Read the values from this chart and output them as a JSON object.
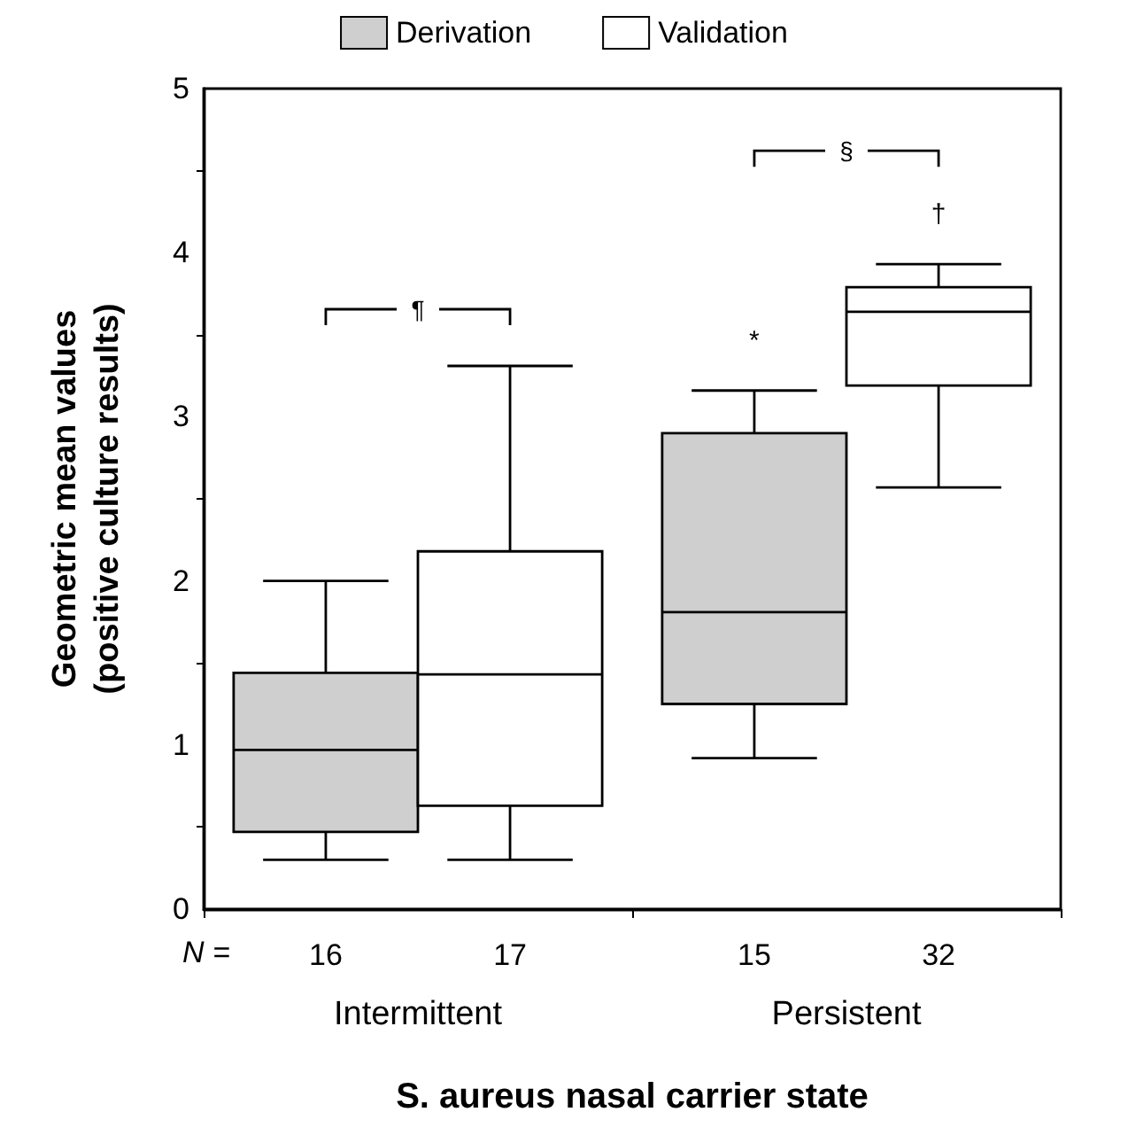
{
  "chart_data": {
    "type": "box",
    "categories": [
      "Intermittent",
      "Persistent"
    ],
    "xlabel": "S. aureus nasal carrier state",
    "ylabel": "Geometric mean values\n(positive culture results)",
    "ylim": [
      0,
      5
    ],
    "yticks": [
      0,
      1,
      2,
      3,
      4,
      5
    ],
    "grid": false,
    "legend": "top",
    "series": [
      {
        "name": "Derivation",
        "color": "#cfcfcf",
        "boxes": [
          {
            "low": 0.3,
            "q1": 0.47,
            "median": 0.97,
            "q3": 1.44,
            "high": 2.0
          },
          {
            "low": 0.92,
            "q1": 1.25,
            "median": 1.81,
            "q3": 2.9,
            "high": 3.16
          }
        ]
      },
      {
        "name": "Validation",
        "color": "#ffffff",
        "boxes": [
          {
            "low": 0.3,
            "q1": 0.63,
            "median": 1.43,
            "q3": 2.18,
            "high": 3.31
          },
          {
            "low": 2.57,
            "q1": 3.19,
            "median": 3.64,
            "q3": 3.79,
            "high": 3.93
          }
        ]
      }
    ],
    "annotations": [
      "N =",
      "16",
      "17",
      "15",
      "32",
      "¶",
      "§",
      "*",
      "†"
    ]
  }
}
